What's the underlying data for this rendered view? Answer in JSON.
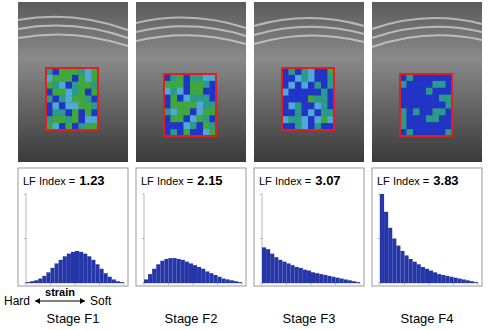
{
  "chart_data": [
    {
      "type": "histogram",
      "title": "Stage F1",
      "annotation": "LF Index =",
      "lf_index": 1.23,
      "bins": [
        0,
        1,
        2,
        3,
        4,
        5,
        6,
        7,
        8,
        9,
        10,
        11,
        12,
        13,
        14,
        15,
        16,
        17,
        18,
        19,
        20,
        21,
        22,
        23,
        24
      ],
      "values": [
        1,
        2,
        3,
        5,
        8,
        12,
        17,
        22,
        26,
        30,
        33,
        35,
        36,
        35,
        33,
        30,
        26,
        21,
        16,
        11,
        7,
        4,
        2,
        1
      ],
      "color": "#2536a8",
      "xlim": [
        0,
        24
      ],
      "ylim": [
        0,
        100
      ],
      "xticks": [
        0,
        6,
        12,
        18,
        24
      ],
      "yticks": [
        0,
        50,
        100
      ],
      "tick_labels": false
    },
    {
      "type": "histogram",
      "title": "Stage F2",
      "annotation": "LF Index =",
      "lf_index": 2.15,
      "bins": [
        0,
        1,
        2,
        3,
        4,
        5,
        6,
        7,
        8,
        9,
        10,
        11,
        12,
        13,
        14,
        15,
        16,
        17,
        18,
        19,
        20,
        21,
        22,
        23,
        24
      ],
      "values": [
        4,
        10,
        16,
        21,
        25,
        27,
        28,
        28,
        27,
        26,
        24,
        22,
        20,
        18,
        16,
        13,
        11,
        9,
        7,
        5,
        4,
        3,
        2,
        1
      ],
      "color": "#2536a8",
      "xlim": [
        0,
        24
      ],
      "ylim": [
        0,
        100
      ],
      "xticks": [
        0,
        6,
        12,
        18,
        24
      ],
      "yticks": [
        0,
        50,
        100
      ],
      "tick_labels": false
    },
    {
      "type": "histogram",
      "title": "Stage F3",
      "annotation": "LF Index =",
      "lf_index": 3.07,
      "bins": [
        0,
        1,
        2,
        3,
        4,
        5,
        6,
        7,
        8,
        9,
        10,
        11,
        12,
        13,
        14,
        15,
        16,
        17,
        18,
        19,
        20,
        21,
        22,
        23,
        24
      ],
      "values": [
        40,
        38,
        33,
        29,
        26,
        24,
        22,
        20,
        18,
        17,
        15,
        14,
        12,
        11,
        10,
        9,
        8,
        7,
        6,
        5,
        4,
        3,
        2,
        1
      ],
      "color": "#2536a8",
      "xlim": [
        0,
        24
      ],
      "ylim": [
        0,
        100
      ],
      "xticks": [
        0,
        6,
        12,
        18,
        24
      ],
      "yticks": [
        0,
        50,
        100
      ],
      "tick_labels": false
    },
    {
      "type": "histogram",
      "title": "Stage F4",
      "annotation": "LF Index =",
      "lf_index": 3.83,
      "bins": [
        0,
        1,
        2,
        3,
        4,
        5,
        6,
        7,
        8,
        9,
        10,
        11,
        12,
        13,
        14,
        15,
        16,
        17,
        18,
        19,
        20,
        21,
        22,
        23,
        24
      ],
      "values": [
        100,
        80,
        62,
        50,
        42,
        36,
        31,
        27,
        24,
        21,
        18,
        16,
        14,
        12,
        10,
        9,
        8,
        7,
        6,
        5,
        4,
        3,
        2,
        1
      ],
      "color": "#2536a8",
      "xlim": [
        0,
        24
      ],
      "ylim": [
        0,
        100
      ],
      "xticks": [
        0,
        6,
        12,
        18,
        24
      ],
      "yticks": [
        0,
        50,
        100
      ],
      "tick_labels": false
    }
  ],
  "strain_scale": {
    "left": "Hard",
    "label": "strain",
    "right": "Soft"
  }
}
